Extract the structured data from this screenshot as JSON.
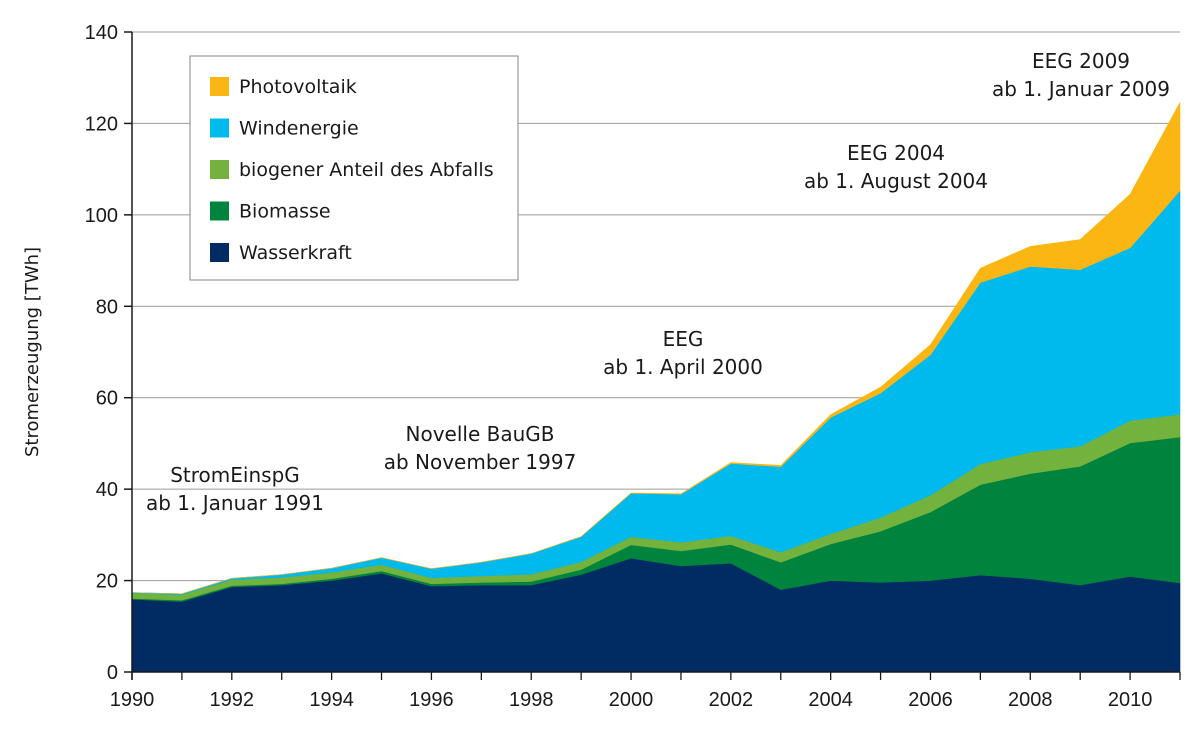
{
  "chart_data": {
    "type": "area",
    "stacked": true,
    "title": "",
    "xlabel": "",
    "ylabel": "Stromerzeugung [TWh]",
    "xlim": [
      1990,
      2011
    ],
    "ylim": [
      0,
      140
    ],
    "x_ticks": [
      1990,
      1992,
      1994,
      1996,
      1998,
      2000,
      2002,
      2004,
      2006,
      2008,
      2010
    ],
    "y_ticks": [
      0,
      20,
      40,
      60,
      80,
      100,
      120,
      140
    ],
    "grid": "horizontal",
    "legend_position": "top-left",
    "x": [
      1990,
      1991,
      1992,
      1993,
      1994,
      1995,
      1996,
      1997,
      1998,
      1999,
      2000,
      2001,
      2002,
      2003,
      2004,
      2005,
      2006,
      2007,
      2008,
      2009,
      2010,
      2011
    ],
    "series": [
      {
        "name": "Wasserkraft",
        "color": "#002b63",
        "values": [
          15.9,
          15.4,
          18.6,
          19.0,
          20.0,
          21.6,
          18.8,
          19.0,
          19.0,
          21.3,
          24.9,
          23.2,
          23.8,
          18.0,
          20.0,
          19.6,
          20.0,
          21.2,
          20.4,
          19.0,
          20.9,
          19.5
        ]
      },
      {
        "name": "Biomasse",
        "color": "#00833d",
        "values": [
          0.2,
          0.3,
          0.3,
          0.3,
          0.4,
          0.5,
          0.5,
          0.6,
          0.8,
          1.1,
          2.9,
          3.3,
          4.1,
          6.0,
          8.0,
          11.2,
          15.0,
          19.8,
          23.0,
          26.0,
          29.2,
          31.9
        ]
      },
      {
        "name": "biogener Anteil des Abfalls",
        "color": "#72b23d",
        "values": [
          1.2,
          1.2,
          1.3,
          1.4,
          1.4,
          1.4,
          1.3,
          1.4,
          1.6,
          1.7,
          1.8,
          1.9,
          1.9,
          2.2,
          2.2,
          3.0,
          3.7,
          4.5,
          4.7,
          4.4,
          4.9,
          5.0
        ]
      },
      {
        "name": "Windenergie",
        "color": "#00b9ed",
        "values": [
          0.1,
          0.2,
          0.3,
          0.6,
          0.9,
          1.5,
          2.0,
          3.0,
          4.5,
          5.5,
          9.5,
          10.5,
          15.8,
          18.7,
          25.5,
          27.2,
          30.7,
          39.7,
          40.6,
          38.6,
          37.8,
          48.9
        ]
      },
      {
        "name": "Photovoltaik",
        "color": "#fbb614",
        "values": [
          0,
          0,
          0,
          0,
          0,
          0,
          0,
          0,
          0,
          0,
          0.06,
          0.1,
          0.2,
          0.3,
          0.6,
          1.3,
          2.2,
          3.1,
          4.4,
          6.6,
          11.7,
          19.3
        ]
      }
    ],
    "legend": [
      "Photovoltaik",
      "Windenergie",
      "biogener Anteil des Abfalls",
      "Biomasse",
      "Wasserkraft"
    ],
    "annotations": [
      {
        "year": 1991,
        "lines": [
          "StromEinspG",
          "ab 1. Januar 1991"
        ]
      },
      {
        "year": 1997,
        "lines": [
          "Novelle BauGB",
          "ab November 1997"
        ]
      },
      {
        "year": 2000,
        "lines": [
          "EEG",
          "ab 1. April 2000"
        ]
      },
      {
        "year": 2004,
        "lines": [
          "EEG 2004",
          "ab 1. August 2004"
        ]
      },
      {
        "year": 2009,
        "lines": [
          "EEG 2009",
          "ab 1. Januar 2009"
        ]
      }
    ]
  }
}
